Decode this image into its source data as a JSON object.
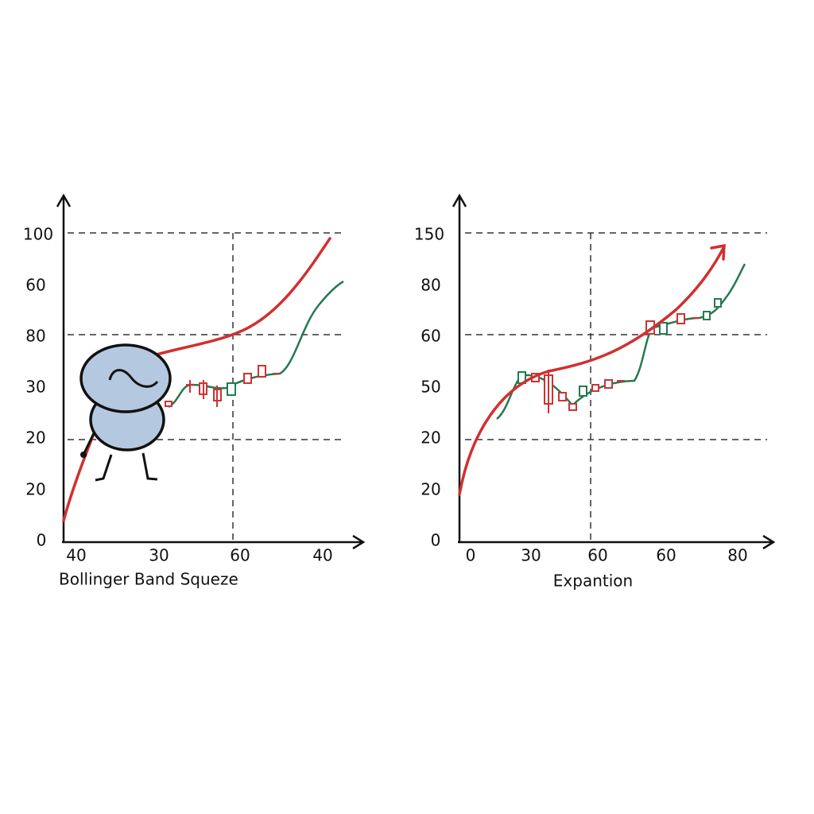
{
  "panels": [
    {
      "caption": "Bollinger Band Squeze",
      "y_labels": [
        "100",
        "60",
        "80",
        "30",
        "20",
        "20",
        "0"
      ],
      "x_labels": [
        "40",
        "30",
        "60",
        "40"
      ]
    },
    {
      "caption": "Expantion",
      "y_labels": [
        "150",
        "80",
        "60",
        "50",
        "20",
        "20",
        "0"
      ],
      "x_labels": [
        "0",
        "30",
        "60",
        "60",
        "80"
      ]
    }
  ]
}
